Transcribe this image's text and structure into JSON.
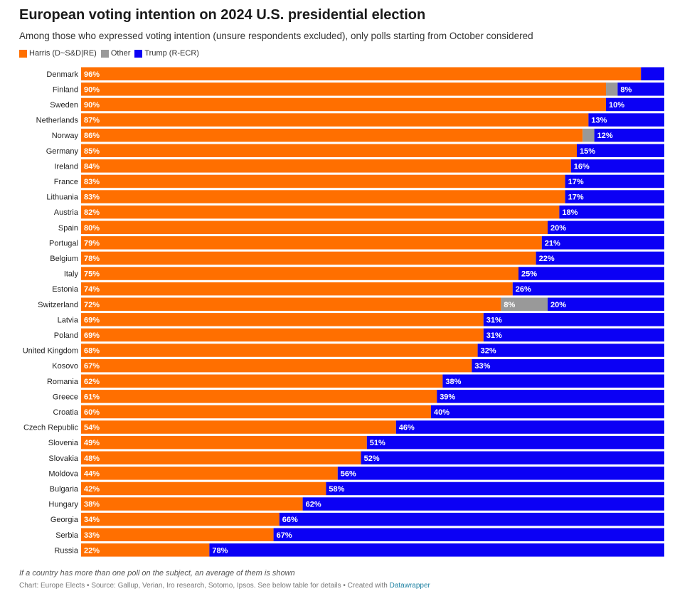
{
  "header": {
    "title": "European voting intention on 2024 U.S. presidential election",
    "subtitle": "Among those who expressed voting intention (unsure respondents excluded), only polls starting from October considered"
  },
  "footer": {
    "note": "If a country has more than one poll on the subject, an average of them is shown",
    "credits": "Chart: Europe Elects • Source: Gallup, Verian, Iro research, Sotomo, Ipsos. See below table for details • Created with ",
    "link_text": "Datawrapper"
  },
  "chart_data": {
    "type": "bar",
    "orientation": "horizontal",
    "stacked": true,
    "xlim": [
      0,
      100
    ],
    "unit": "%",
    "legend": {
      "position": "top-left",
      "entries": [
        "Harris (D~S&D|RE)",
        "Other",
        "Trump (R-ECR)"
      ]
    },
    "colors": {
      "Harris": "#ff6f00",
      "Other": "#999999",
      "Trump": "#0b00f5"
    },
    "categories": [
      "Denmark",
      "Finland",
      "Sweden",
      "Netherlands",
      "Norway",
      "Germany",
      "Ireland",
      "France",
      "Lithuania",
      "Austria",
      "Spain",
      "Portugal",
      "Belgium",
      "Italy",
      "Estonia",
      "Switzerland",
      "Latvia",
      "Poland",
      "United Kingdom",
      "Kosovo",
      "Romania",
      "Greece",
      "Croatia",
      "Czech Republic",
      "Slovenia",
      "Slovakia",
      "Moldova",
      "Bulgaria",
      "Hungary",
      "Georgia",
      "Serbia",
      "Russia"
    ],
    "series": [
      {
        "name": "Harris (D~S&D|RE)",
        "key": "Harris",
        "values": [
          96,
          90,
          90,
          87,
          86,
          85,
          84,
          83,
          83,
          82,
          80,
          79,
          78,
          75,
          74,
          72,
          69,
          69,
          68,
          67,
          62,
          61,
          60,
          54,
          49,
          48,
          44,
          42,
          38,
          34,
          33,
          22
        ]
      },
      {
        "name": "Other",
        "key": "Other",
        "values": [
          0,
          2,
          0,
          0,
          2,
          0,
          0,
          0,
          0,
          0,
          0,
          0,
          0,
          0,
          0,
          8,
          0,
          0,
          0,
          0,
          0,
          0,
          0,
          0,
          0,
          0,
          0,
          0,
          0,
          0,
          0,
          0
        ]
      },
      {
        "name": "Trump (R-ECR)",
        "key": "Trump",
        "values": [
          4,
          8,
          10,
          13,
          12,
          15,
          16,
          17,
          17,
          18,
          20,
          21,
          22,
          25,
          26,
          20,
          31,
          31,
          32,
          33,
          38,
          39,
          40,
          46,
          51,
          52,
          56,
          58,
          62,
          66,
          67,
          78
        ]
      }
    ],
    "label_threshold": 5
  }
}
